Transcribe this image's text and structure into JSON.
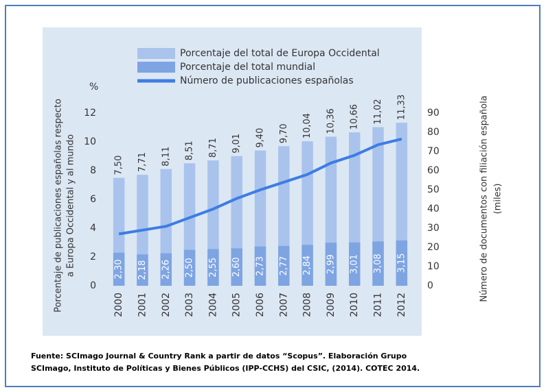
{
  "chart_data": {
    "type": "bar",
    "categories": [
      "2000",
      "2001",
      "2002",
      "2003",
      "2004",
      "2005",
      "2006",
      "2007",
      "2008",
      "2009",
      "2010",
      "2011",
      "2012"
    ],
    "series": [
      {
        "name": "Porcentaje del total de Europa Occidental",
        "color": "#a9c3ec",
        "values": [
          7.5,
          7.71,
          8.11,
          8.51,
          8.71,
          9.01,
          9.4,
          9.7,
          10.04,
          10.36,
          10.66,
          11.02,
          11.33
        ],
        "value_labels": [
          "7,50",
          "7,71",
          "8,11",
          "8,51",
          "8,71",
          "9,01",
          "9,40",
          "9,70",
          "10,04",
          "10,36",
          "10,66",
          "11,02",
          "11,33"
        ]
      },
      {
        "name": "Porcentaje del total mundial",
        "color": "#7ea4e2",
        "values": [
          2.3,
          2.18,
          2.26,
          2.5,
          2.55,
          2.6,
          2.73,
          2.77,
          2.84,
          2.99,
          3.01,
          3.08,
          3.15
        ],
        "value_labels": [
          "2,30",
          "2,18",
          "2,26",
          "2,50",
          "2,55",
          "2,60",
          "2,73",
          "2,77",
          "2,84",
          "2,99",
          "3,01",
          "3,08",
          "3,15"
        ]
      },
      {
        "name": "Número de publicaciones españolas",
        "color": "#3d7de3",
        "type": "line",
        "axis": "y2",
        "values": [
          27,
          29,
          31,
          35.5,
          40,
          45.5,
          50,
          54,
          58,
          64,
          68,
          73.5,
          76.5
        ]
      }
    ],
    "y_unit": "%",
    "y_label": [
      "Porcentaje de publicaciones españolas respecto",
      "a Europa Occidental y al mundo"
    ],
    "y2_label": [
      "Número de documentos con filiación española",
      "(miles)"
    ],
    "ylim": [
      0,
      12
    ],
    "yticks": [
      0,
      2,
      4,
      6,
      8,
      10,
      12
    ],
    "y2lim": [
      0,
      90
    ],
    "y2ticks": [
      0,
      10,
      20,
      30,
      40,
      50,
      60,
      70,
      80,
      90
    ],
    "source": [
      "Fuente: SCImago Journal & Country Rank a partir de datos “Scopus”. Elaboración Grupo",
      "SCImago, Instituto de Políticas y Bienes Públicos (IPP-CCHS) del CSIC, (2014). COTEC 2014."
    ]
  }
}
